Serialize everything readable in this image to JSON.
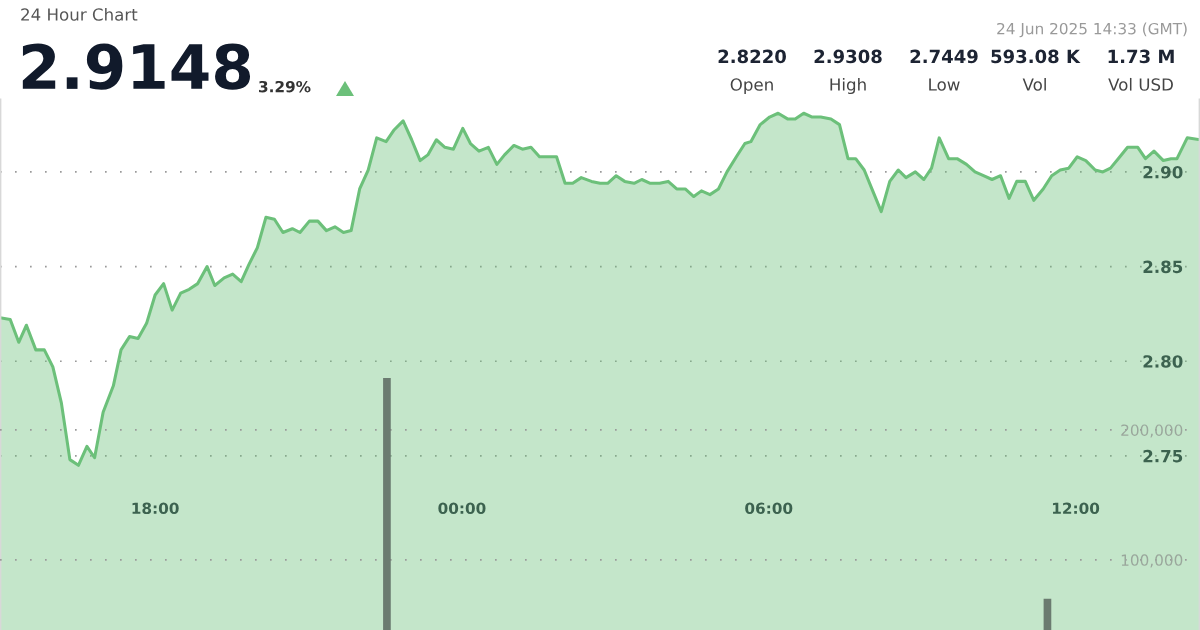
{
  "chart_data": {
    "type": "area",
    "title": "24 Hour Chart",
    "subtitle": "2.9148",
    "annotations": [
      "3.29%",
      "24 Jun 2025 14:33 (GMT)",
      "2.8220",
      "2.9308",
      "2.7449",
      "593.08 K",
      "1.73 M",
      "Open",
      "High",
      "Low",
      "Vol",
      "Vol USD"
    ],
    "xlim": [
      "2025-06-23T14:58",
      "2025-06-24T14:26"
    ],
    "xticks": [
      {
        "value": "2025-06-23T18:00",
        "label": "18:00"
      },
      {
        "value": "2025-06-24T00:00",
        "label": "00:00"
      },
      {
        "value": "2025-06-24T06:00",
        "label": "06:00"
      },
      {
        "value": "2025-06-24T12:00",
        "label": "12:00"
      }
    ],
    "ylim": [
      2.658,
      2.938
    ],
    "yticks": [
      {
        "value": 2.75,
        "label": "2.75"
      },
      {
        "value": 2.8,
        "label": "2.80"
      },
      {
        "value": 2.85,
        "label": "2.85"
      },
      {
        "value": 2.9,
        "label": "2.90"
      }
    ],
    "y2lim": [
      46000,
      454000
    ],
    "y2ticks": [
      {
        "value": 100000,
        "label": "100,000"
      },
      {
        "value": 200000,
        "label": "200,000"
      }
    ],
    "grid": "y",
    "series": [
      {
        "color": "#6cc07a",
        "x": [
          "2025-06-23T14:58",
          "2025-06-23T15:10",
          "2025-06-23T15:20",
          "2025-06-23T15:29",
          "2025-06-23T15:40",
          "2025-06-23T15:50",
          "2025-06-23T16:00",
          "2025-06-23T16:10",
          "2025-06-23T16:20",
          "2025-06-23T16:30",
          "2025-06-23T16:40",
          "2025-06-23T16:49",
          "2025-06-23T16:59",
          "2025-06-23T17:11",
          "2025-06-23T17:20",
          "2025-06-23T17:30",
          "2025-06-23T17:40",
          "2025-06-23T17:50",
          "2025-06-23T18:00",
          "2025-06-23T18:10",
          "2025-06-23T18:20",
          "2025-06-23T18:30",
          "2025-06-23T18:40",
          "2025-06-23T18:50",
          "2025-06-23T19:01",
          "2025-06-23T19:10",
          "2025-06-23T19:21",
          "2025-06-23T19:31",
          "2025-06-23T19:41",
          "2025-06-23T19:50",
          "2025-06-23T20:00",
          "2025-06-23T20:10",
          "2025-06-23T20:20",
          "2025-06-23T20:30",
          "2025-06-23T20:41",
          "2025-06-23T20:50",
          "2025-06-23T21:01",
          "2025-06-23T21:11",
          "2025-06-23T21:21",
          "2025-06-23T21:31",
          "2025-06-23T21:41",
          "2025-06-23T21:50",
          "2025-06-23T22:00",
          "2025-06-23T22:10",
          "2025-06-23T22:20",
          "2025-06-23T22:31",
          "2025-06-23T22:40",
          "2025-06-23T22:51",
          "2025-06-23T23:01",
          "2025-06-23T23:11",
          "2025-06-23T23:20",
          "2025-06-23T23:30",
          "2025-06-23T23:40",
          "2025-06-23T23:50",
          "2025-06-24T00:01",
          "2025-06-24T00:10",
          "2025-06-24T00:20",
          "2025-06-24T00:31",
          "2025-06-24T00:41",
          "2025-06-24T00:50",
          "2025-06-24T01:01",
          "2025-06-24T01:11",
          "2025-06-24T01:21",
          "2025-06-24T01:31",
          "2025-06-24T01:41",
          "2025-06-24T01:51",
          "2025-06-24T02:01",
          "2025-06-24T02:10",
          "2025-06-24T02:20",
          "2025-06-24T02:32",
          "2025-06-24T02:42",
          "2025-06-24T02:51",
          "2025-06-24T03:01",
          "2025-06-24T03:11",
          "2025-06-24T03:22",
          "2025-06-24T03:31",
          "2025-06-24T03:41",
          "2025-06-24T03:52",
          "2025-06-24T04:02",
          "2025-06-24T04:12",
          "2025-06-24T04:22",
          "2025-06-24T04:32",
          "2025-06-24T04:41",
          "2025-06-24T04:51",
          "2025-06-24T05:01",
          "2025-06-24T05:11",
          "2025-06-24T05:22",
          "2025-06-24T05:32",
          "2025-06-24T05:39",
          "2025-06-24T05:50",
          "2025-06-24T06:01",
          "2025-06-24T06:11",
          "2025-06-24T06:22",
          "2025-06-24T06:31",
          "2025-06-24T06:41",
          "2025-06-24T06:51",
          "2025-06-24T07:01",
          "2025-06-24T07:13",
          "2025-06-24T07:23",
          "2025-06-24T07:33",
          "2025-06-24T07:42",
          "2025-06-24T07:52",
          "2025-06-24T08:02",
          "2025-06-24T08:12",
          "2025-06-24T08:22",
          "2025-06-24T08:32",
          "2025-06-24T08:41",
          "2025-06-24T08:52",
          "2025-06-24T09:02",
          "2025-06-24T09:11",
          "2025-06-24T09:20",
          "2025-06-24T09:31",
          "2025-06-24T09:41",
          "2025-06-24T09:52",
          "2025-06-24T10:02",
          "2025-06-24T10:12",
          "2025-06-24T10:22",
          "2025-06-24T10:32",
          "2025-06-24T10:42",
          "2025-06-24T10:51",
          "2025-06-24T11:01",
          "2025-06-24T11:11",
          "2025-06-24T11:22",
          "2025-06-24T11:32",
          "2025-06-24T11:42",
          "2025-06-24T11:52",
          "2025-06-24T12:02",
          "2025-06-24T12:12",
          "2025-06-24T12:23",
          "2025-06-24T12:32",
          "2025-06-24T12:41",
          "2025-06-24T12:52",
          "2025-06-24T13:01",
          "2025-06-24T13:13",
          "2025-06-24T13:22",
          "2025-06-24T13:32",
          "2025-06-24T13:43",
          "2025-06-24T13:52",
          "2025-06-24T13:59",
          "2025-06-24T14:11",
          "2025-06-24T14:26"
        ],
        "values": [
          2.823,
          2.822,
          2.81,
          2.819,
          2.806,
          2.806,
          2.797,
          2.778,
          2.748,
          2.745,
          2.755,
          2.749,
          2.773,
          2.787,
          2.806,
          2.813,
          2.812,
          2.82,
          2.835,
          2.841,
          2.827,
          2.836,
          2.838,
          2.841,
          2.85,
          2.84,
          2.844,
          2.846,
          2.842,
          2.851,
          2.86,
          2.876,
          2.875,
          2.868,
          2.87,
          2.868,
          2.874,
          2.874,
          2.869,
          2.871,
          2.868,
          2.869,
          2.891,
          2.901,
          2.918,
          2.916,
          2.922,
          2.927,
          2.917,
          2.906,
          2.909,
          2.917,
          2.913,
          2.912,
          2.923,
          2.915,
          2.911,
          2.913,
          2.904,
          2.909,
          2.914,
          2.912,
          2.913,
          2.908,
          2.908,
          2.908,
          2.894,
          2.894,
          2.897,
          2.895,
          2.894,
          2.894,
          2.898,
          2.895,
          2.894,
          2.896,
          2.894,
          2.894,
          2.895,
          2.891,
          2.891,
          2.887,
          2.89,
          2.888,
          2.891,
          2.9,
          2.908,
          2.915,
          2.916,
          2.925,
          2.929,
          2.931,
          2.928,
          2.928,
          2.931,
          2.929,
          2.929,
          2.928,
          2.925,
          2.907,
          2.907,
          2.901,
          2.89,
          2.879,
          2.895,
          2.901,
          2.897,
          2.9,
          2.896,
          2.902,
          2.918,
          2.907,
          2.907,
          2.904,
          2.9,
          2.898,
          2.896,
          2.898,
          2.886,
          2.895,
          2.895,
          2.885,
          2.891,
          2.898,
          2.901,
          2.902,
          2.908,
          2.906,
          2.901,
          2.9,
          2.902,
          2.908,
          2.913,
          2.913,
          2.907,
          2.911,
          2.906,
          2.907,
          2.907,
          2.918,
          2.917
        ]
      },
      {
        "type": "bar",
        "axis": "y2",
        "color": "#6b7b70",
        "x": [
          "2025-06-23T22:32",
          "2025-06-24T11:27"
        ],
        "values": [
          240000,
          70000
        ]
      }
    ]
  }
}
